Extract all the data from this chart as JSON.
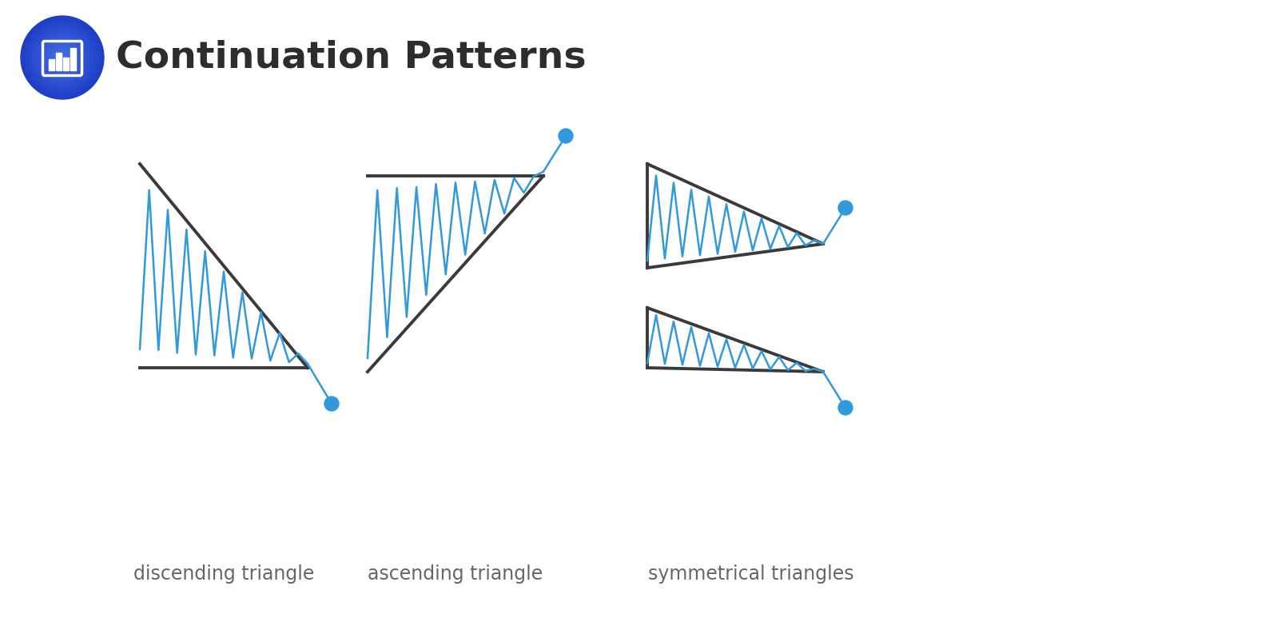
{
  "title": "Continuation Patterns",
  "title_fontsize": 34,
  "title_color": "#2d2d2d",
  "bg_color": "#ffffff",
  "pattern_line_color": "#3a3a3a",
  "price_line_color": "#3399dd",
  "dot_color": "#3399dd",
  "labels": [
    "discending triangle",
    "ascending triangle",
    "symmetrical triangles"
  ],
  "label_fontsize": 17,
  "label_color": "#666666",
  "icon_bg_color": "#1e3fce",
  "icon_bg_color2": "#2a5af5"
}
